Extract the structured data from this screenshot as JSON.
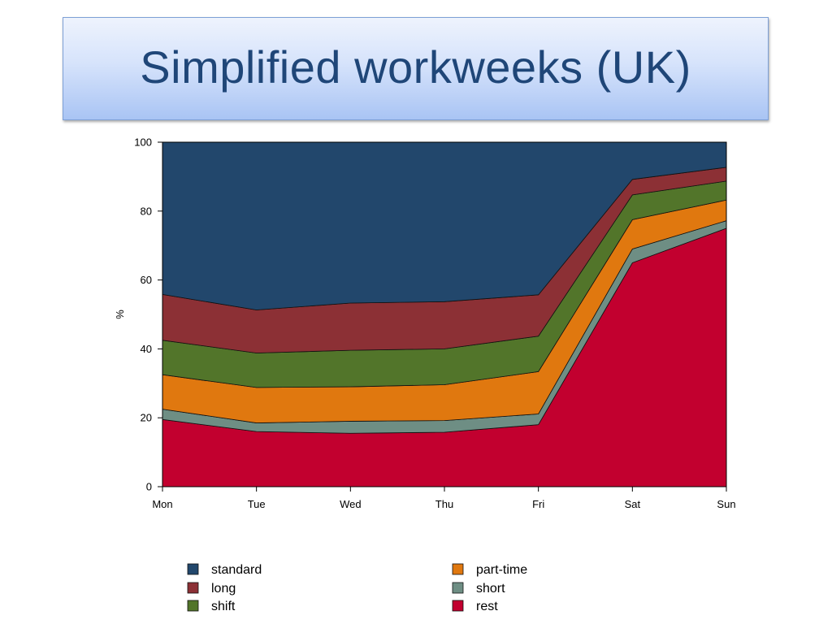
{
  "slide": {
    "title": "Simplified workweeks (UK)"
  },
  "chart_data": {
    "type": "area",
    "stacked": true,
    "categories": [
      "Mon",
      "Tue",
      "Wed",
      "Thu",
      "Fri",
      "Sat",
      "Sun"
    ],
    "ylabel": "%",
    "ylim": [
      0,
      100
    ],
    "yticks": [
      0,
      20,
      40,
      60,
      80,
      100
    ],
    "legend_position": "bottom",
    "series": [
      {
        "name": "rest",
        "color": "#c2002f",
        "values": [
          19.5,
          16,
          15.5,
          15.8,
          18,
          65,
          75
        ]
      },
      {
        "name": "short",
        "color": "#6e8e84",
        "values": [
          3,
          2.5,
          3.5,
          3.4,
          3.1,
          4,
          2.2
        ]
      },
      {
        "name": "part-time",
        "color": "#e0780f",
        "values": [
          10,
          10.3,
          10,
          10.4,
          12.3,
          8.5,
          6
        ]
      },
      {
        "name": "shift",
        "color": "#52752a",
        "values": [
          10,
          10,
          10.6,
          10.4,
          10.3,
          7.2,
          5.5
        ]
      },
      {
        "name": "long",
        "color": "#8c3035",
        "values": [
          13.3,
          12.5,
          13.7,
          13.7,
          12,
          4.5,
          4
        ]
      },
      {
        "name": "standard",
        "color": "#22476c",
        "values": [
          44.2,
          48.7,
          46.7,
          46.3,
          44.3,
          10.8,
          7.3
        ]
      }
    ],
    "legend_order": [
      "standard",
      "part-time",
      "long",
      "short",
      "shift",
      "rest"
    ]
  }
}
